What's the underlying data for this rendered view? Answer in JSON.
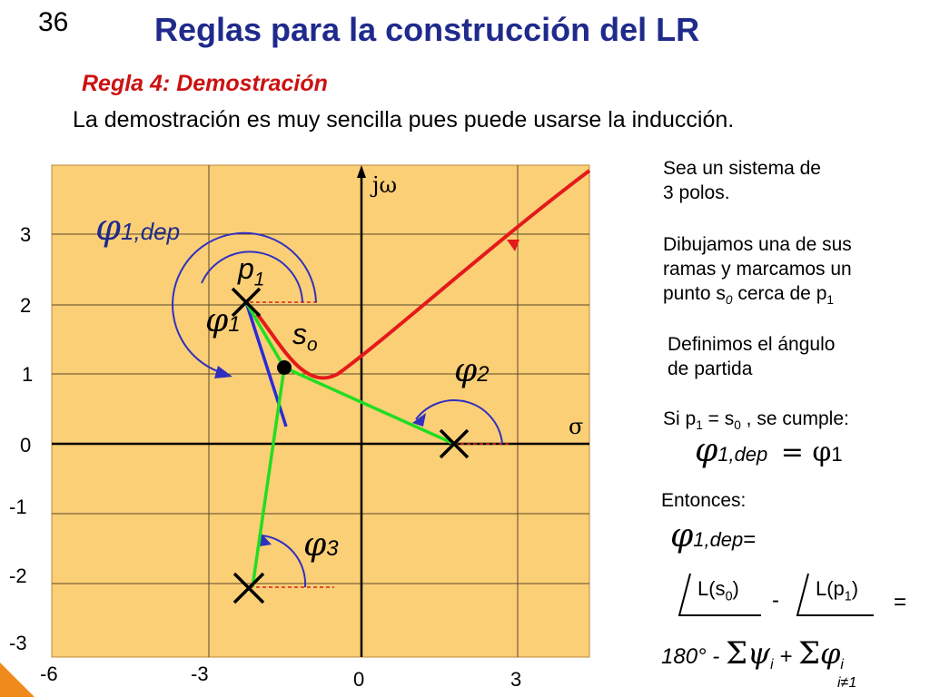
{
  "slide_number": "36",
  "title": "Reglas para la construcción del LR",
  "subtitle": "Regla 4: Demostración",
  "intro": "La demostración es muy sencilla pues puede usarse la inducción.",
  "colors": {
    "title": "#1f2a8c",
    "subtitle": "#cc1111",
    "plot_bg": "#fbcf76",
    "branch": "#e41a1a",
    "vectors": "#22dd22",
    "tangent": "#2a2ad8",
    "angle_arcs": "#3030c0"
  },
  "plot": {
    "axis_labels": {
      "imag": "jω",
      "real": "σ"
    },
    "y_ticks": [
      "3",
      "2",
      "1",
      "0",
      "-1",
      "-2",
      "-3"
    ],
    "x_ticks": [
      "-6",
      "-3",
      "0",
      "3"
    ],
    "labels": {
      "phi": "φ",
      "phi_1dep_sub": "1,dep",
      "p1": "p",
      "p1_sub": "1",
      "phi1_sub": "1",
      "s0": "s",
      "s0_sub": "o",
      "phi2_sub": "2",
      "phi3_sub": "3"
    }
  },
  "side_text": {
    "para1_line1": "Sea un sistema de",
    "para1_line2": "3 polos.",
    "para2_line1": "Dibujamos una de sus",
    "para2_line2": "ramas y marcamos un",
    "para2_line3_a": "punto s",
    "para2_line3_sub": "0",
    "para2_line3_b": " cerca de p",
    "para2_line3_sub2": "1",
    "para3_line1": "Definimos el ángulo",
    "para3_line2": "de partida",
    "si_a": "Si p",
    "si_sub1": "1",
    "si_b": " = s",
    "si_sub2": "0",
    "si_c": " , se cumple:",
    "eq1_sub": "1,dep",
    "eq1_equals": "= φ",
    "eq1_sub2": "1",
    "entonces": "Entonces:",
    "eq2_sub": "1,dep",
    "eq2_equals": "=",
    "L_s0_a": "L(s",
    "L_s0_sub": "0",
    "L_s0_b": ")",
    "minus": "-",
    "L_p1_a": "L(p",
    "L_p1_sub": "1",
    "L_p1_b": ")",
    "equals": "=",
    "final_a": "180° - ",
    "sigma": "Σ",
    "psi": "ψ",
    "psi_sub": "i",
    "plus": " + ",
    "phi_i_sub": "i",
    "sum_index": "i≠1"
  }
}
